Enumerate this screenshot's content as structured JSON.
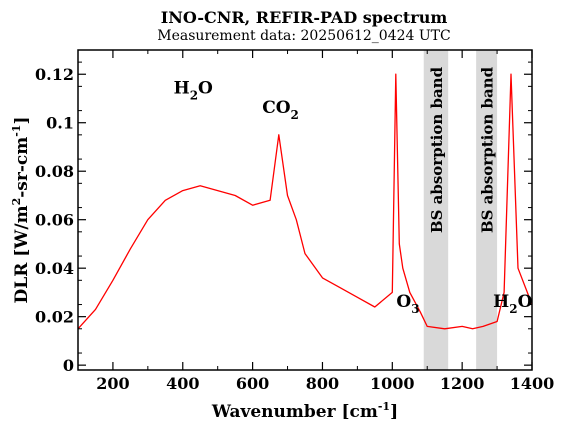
{
  "chart_data": {
    "type": "line",
    "title": "INO-CNR, REFIR-PAD spectrum",
    "subtitle": "Measurement data: 20250612_0424 UTC",
    "xlabel": "Wavenumber [cm",
    "xlabel_sup": "-1",
    "xlabel_end": "]",
    "ylabel": "DLR [W/m",
    "ylabel_sup1": "2",
    "ylabel_mid": "-sr-cm",
    "ylabel_sup2": "-1",
    "ylabel_end": "]",
    "xlim": [
      100,
      1400
    ],
    "ylim": [
      -0.002,
      0.13
    ],
    "x_ticks": [
      200,
      400,
      600,
      800,
      1000,
      1200,
      1400
    ],
    "y_ticks": [
      0,
      0.02,
      0.04,
      0.06,
      0.08,
      0.1,
      0.12
    ],
    "x_tick_labels": [
      "200",
      "400",
      "600",
      "800",
      "1000",
      "1200",
      "1400"
    ],
    "y_tick_labels": [
      "0",
      "0.02",
      "0.04",
      "0.06",
      "0.08",
      "0.1",
      "0.12"
    ],
    "grid": false,
    "series": [
      {
        "color": "#ff0000",
        "x": [
          100,
          150,
          200,
          250,
          300,
          350,
          400,
          450,
          500,
          550,
          600,
          650,
          675,
          700,
          725,
          750,
          800,
          850,
          900,
          950,
          1000,
          1010,
          1020,
          1030,
          1050,
          1080,
          1100,
          1150,
          1200,
          1230,
          1260,
          1300,
          1320,
          1340,
          1360,
          1400
        ],
        "values": [
          0.015,
          0.023,
          0.035,
          0.048,
          0.06,
          0.068,
          0.072,
          0.074,
          0.072,
          0.07,
          0.066,
          0.068,
          0.095,
          0.07,
          0.06,
          0.046,
          0.036,
          0.032,
          0.028,
          0.024,
          0.03,
          0.12,
          0.05,
          0.04,
          0.03,
          0.022,
          0.016,
          0.015,
          0.016,
          0.015,
          0.016,
          0.018,
          0.03,
          0.12,
          0.04,
          0.025
        ]
      }
    ],
    "annotations": [
      {
        "text": "H",
        "sub": "2",
        "tail": "O",
        "x": 430,
        "y": 0.112
      },
      {
        "text": "CO",
        "sub": "2",
        "tail": "",
        "x": 680,
        "y": 0.104
      },
      {
        "text": "O",
        "sub": "3",
        "tail": "",
        "x": 1045,
        "y": 0.024
      },
      {
        "text": "H",
        "sub": "2",
        "tail": "O",
        "x": 1345,
        "y": 0.024
      }
    ],
    "shaded_bands": [
      {
        "label": "BS absorption band",
        "x": [
          1090,
          1160
        ],
        "color": "#d9d9d9"
      },
      {
        "label": "BS absorption band",
        "x": [
          1240,
          1300
        ],
        "color": "#d9d9d9"
      }
    ]
  }
}
